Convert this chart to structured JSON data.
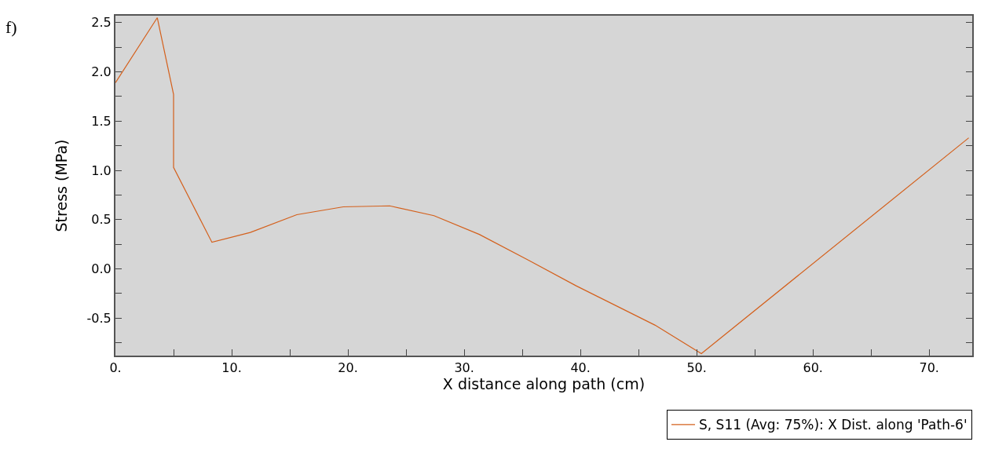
{
  "chart_data": {
    "type": "line",
    "xlabel": "X distance along path (cm)",
    "ylabel": "Stress (MPa)",
    "annotations": [
      "f)"
    ],
    "x": [
      0,
      3.6,
      5.0,
      5.0,
      8.3,
      11.6,
      15.6,
      19.6,
      23.6,
      27.4,
      31.3,
      35.5,
      39.6,
      46.4,
      50.4,
      73.4
    ],
    "series": [
      {
        "name": "S, S11 (Avg: 75%): X Dist. along 'Path-6'",
        "color": "#d4601c",
        "values": [
          1.89,
          2.55,
          1.77,
          1.03,
          0.27,
          0.37,
          0.55,
          0.63,
          0.64,
          0.54,
          0.35,
          0.09,
          -0.17,
          -0.57,
          -0.86,
          1.33
        ]
      }
    ],
    "xlim": [
      0,
      73.7
    ],
    "ylim": [
      -0.88,
      2.57
    ],
    "xticks": [
      {
        "value": 0,
        "label": "0."
      },
      {
        "value": 5,
        "label": null
      },
      {
        "value": 10,
        "label": "10."
      },
      {
        "value": 15,
        "label": null
      },
      {
        "value": 20,
        "label": "20."
      },
      {
        "value": 25,
        "label": null
      },
      {
        "value": 30,
        "label": "30."
      },
      {
        "value": 35,
        "label": null
      },
      {
        "value": 40,
        "label": "40."
      },
      {
        "value": 45,
        "label": null
      },
      {
        "value": 50,
        "label": "50."
      },
      {
        "value": 55,
        "label": null
      },
      {
        "value": 60,
        "label": "60."
      },
      {
        "value": 65,
        "label": null
      },
      {
        "value": 70,
        "label": "70."
      }
    ],
    "yticks": [
      {
        "value": -0.75,
        "label": null
      },
      {
        "value": -0.5,
        "label": "-0.5"
      },
      {
        "value": -0.25,
        "label": null
      },
      {
        "value": 0,
        "label": "0.0"
      },
      {
        "value": 0.25,
        "label": null
      },
      {
        "value": 0.5,
        "label": "0.5"
      },
      {
        "value": 0.75,
        "label": null
      },
      {
        "value": 1,
        "label": "1.0"
      },
      {
        "value": 1.25,
        "label": null
      },
      {
        "value": 1.5,
        "label": "1.5"
      },
      {
        "value": 1.75,
        "label": null
      },
      {
        "value": 2,
        "label": "2.0"
      },
      {
        "value": 2.25,
        "label": null
      },
      {
        "value": 2.5,
        "label": "2.5"
      }
    ],
    "grid": false,
    "legend": "bottom right",
    "marker": "none",
    "line_style": "solid"
  }
}
